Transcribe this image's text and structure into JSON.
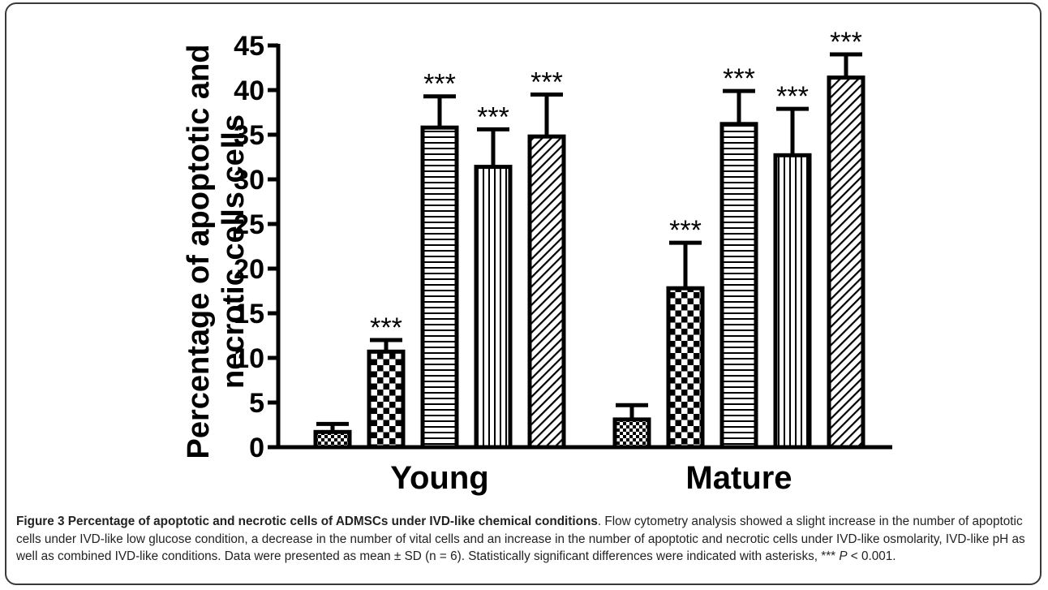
{
  "chart_data": {
    "type": "bar",
    "ylabel_line1": "Percentage of apoptotic and",
    "ylabel_line2": "necrotic cells  cells",
    "xlabel": "",
    "ylim": [
      0,
      45
    ],
    "yticks": [
      0,
      5,
      10,
      15,
      20,
      25,
      30,
      35,
      40,
      45
    ],
    "grid": false,
    "legend": "none",
    "categories": [
      "Young",
      "Mature"
    ],
    "series": [
      {
        "pattern": "fine-checker",
        "values": [
          1.7,
          3.1
        ],
        "errors": [
          0.9,
          1.6
        ],
        "annotations": [
          "",
          ""
        ]
      },
      {
        "pattern": "checker",
        "values": [
          10.7,
          17.8
        ],
        "errors": [
          1.3,
          5.1
        ],
        "annotations": [
          "***",
          "***"
        ]
      },
      {
        "pattern": "horizontal-stripes",
        "values": [
          35.8,
          36.2
        ],
        "errors": [
          3.5,
          3.7
        ],
        "annotations": [
          "***",
          "***"
        ]
      },
      {
        "pattern": "vertical-stripes",
        "values": [
          31.4,
          32.7
        ],
        "errors": [
          4.2,
          5.2
        ],
        "annotations": [
          "***",
          "***"
        ]
      },
      {
        "pattern": "diagonal-stripes",
        "values": [
          34.8,
          41.4
        ],
        "errors": [
          4.7,
          2.6
        ],
        "annotations": [
          "***",
          "***"
        ]
      }
    ]
  },
  "caption": {
    "title": "Figure 3 Percentage of apoptotic and necrotic cells of ADMSCs under IVD-like chemical conditions",
    "text_before_p": ". Flow cytometry analysis showed a slight increase in the number of apoptotic cells under IVD-like low glucose condition, a decrease in the number of vital cells and an increase in the number of apoptotic and necrotic cells under IVD-like osmolarity, IVD-like pH as well as combined IVD-like conditions. Data were presented as mean ± SD (n = 6). Statistically significant differences were indicated with asterisks, *** ",
    "p_symbol": "P",
    "text_after_p": " < 0.001."
  }
}
